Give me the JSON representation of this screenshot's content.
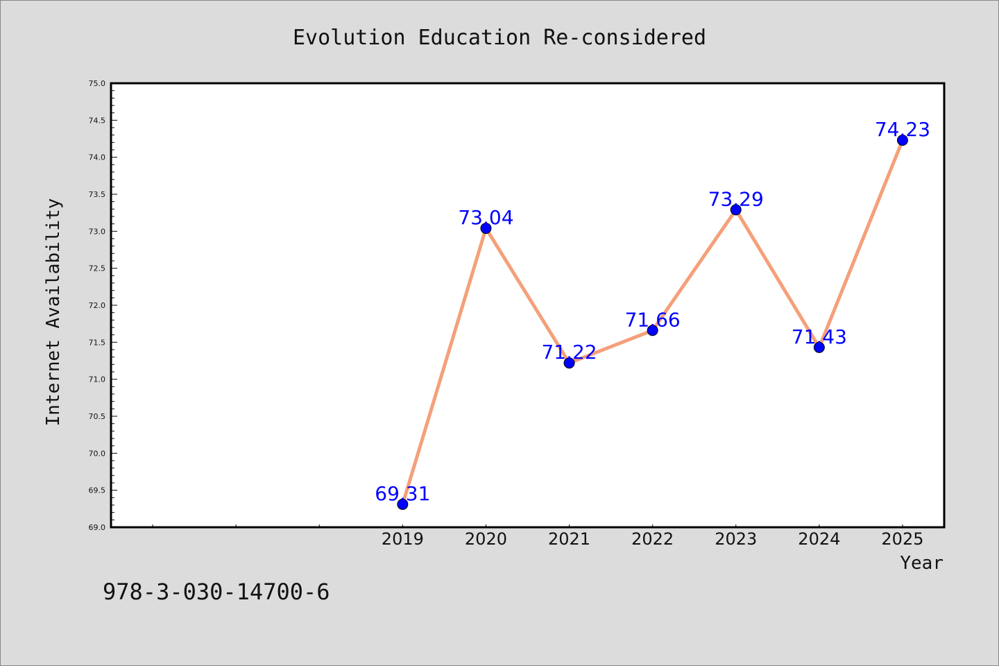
{
  "chart_data": {
    "type": "line",
    "title": "Evolution Education Re-considered",
    "xlabel": "Year",
    "ylabel": "Internet Availability",
    "x": [
      2019,
      2020,
      2021,
      2022,
      2023,
      2024,
      2025
    ],
    "xlim": [
      2015.5,
      2025.5
    ],
    "ylim": [
      69.0,
      75.0
    ],
    "y_ticks": [
      "69.0",
      "69.5",
      "70.0",
      "70.5",
      "71.0",
      "71.5",
      "72.0",
      "72.5",
      "73.0",
      "73.5",
      "74.0",
      "74.5",
      "75.0"
    ],
    "x_tick_labels": [
      "2019",
      "2020",
      "2021",
      "2022",
      "2023",
      "2024",
      "2025"
    ],
    "series": [
      {
        "values": [
          69.31,
          73.04,
          71.22,
          71.66,
          73.29,
          71.43,
          74.23
        ],
        "data_labels": [
          "69.31",
          "73.04",
          "71.22",
          "71.66",
          "73.29",
          "71.43",
          "74.23"
        ],
        "line_color": "#f4a07a",
        "marker_color": "#0000ff"
      }
    ],
    "grid": false,
    "background": "#dcdcdc",
    "plot_background": "#ffffff"
  },
  "footer": {
    "isbn": "978-3-030-14700-6"
  }
}
